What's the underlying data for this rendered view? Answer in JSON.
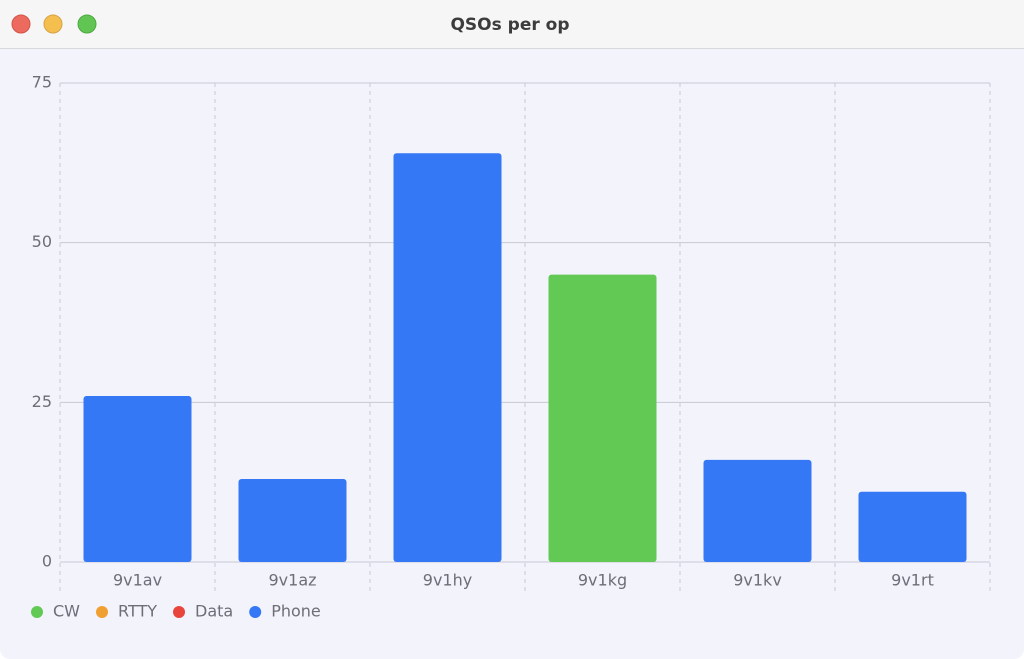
{
  "window_title": "QSOs per op",
  "chart_data": {
    "type": "stacked-bar",
    "categories": [
      "9v1av",
      "9v1az",
      "9v1hy",
      "9v1kg",
      "9v1kv",
      "9v1rt"
    ],
    "series": [
      {
        "name": "CW",
        "color": "#62c955",
        "values": [
          0,
          0,
          0,
          45,
          0,
          0
        ]
      },
      {
        "name": "RTTY",
        "color": "#f0a030",
        "values": [
          0,
          0,
          0,
          0,
          0,
          0
        ]
      },
      {
        "name": "Data",
        "color": "#e8453c",
        "values": [
          0,
          0,
          0,
          0,
          0,
          0
        ]
      },
      {
        "name": "Phone",
        "color": "#3478f6",
        "values": [
          26,
          13,
          64,
          0,
          16,
          11
        ]
      }
    ],
    "ylim": [
      0,
      75
    ],
    "yticks": [
      0,
      25,
      50,
      75
    ],
    "grid": true,
    "legend": "bottom-left"
  }
}
